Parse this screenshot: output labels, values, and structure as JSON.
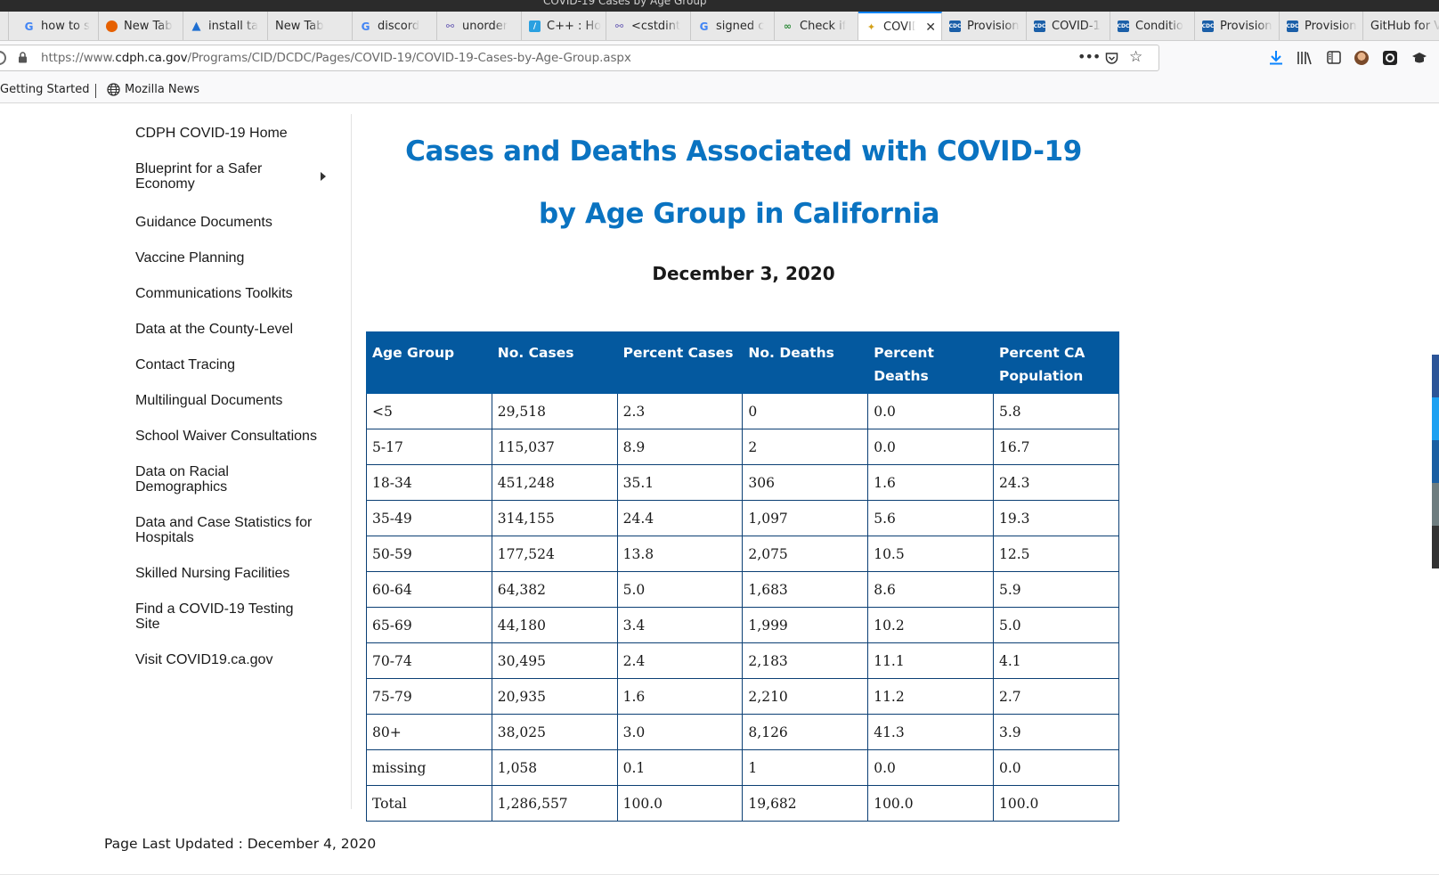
{
  "window": {
    "title": "COVID-19 Cases by Age Group"
  },
  "tabs": [
    {
      "label": "how to s",
      "icon": "google-icon"
    },
    {
      "label": "New Tab",
      "icon": "firefox-icon"
    },
    {
      "label": "install ta",
      "icon": "blue-a-icon"
    },
    {
      "label": "New Tab",
      "icon": ""
    },
    {
      "label": "discord",
      "icon": "google-icon"
    },
    {
      "label": "unorder",
      "icon": "cppreference-icon"
    },
    {
      "label": "C++ : Ho",
      "icon": "code-icon"
    },
    {
      "label": "<cstdint",
      "icon": "cppreference-icon"
    },
    {
      "label": "signed c",
      "icon": "google-icon"
    },
    {
      "label": "Check if",
      "icon": "leaf-icon"
    },
    {
      "label": "COVID",
      "icon": "cdph-icon",
      "active": true
    },
    {
      "label": "Provision",
      "icon": "cdc-icon"
    },
    {
      "label": "COVID-1",
      "icon": "cdc-icon"
    },
    {
      "label": "Conditio",
      "icon": "cdc-icon"
    },
    {
      "label": "Provision",
      "icon": "cdc-icon"
    },
    {
      "label": "Provision",
      "icon": "cdc-icon"
    },
    {
      "label": "GitHub for V",
      "icon": ""
    }
  ],
  "address": {
    "url_prefix": "https://www.",
    "url_domain": "cdph.ca.gov",
    "url_path": "/Programs/CID/DCDC/Pages/COVID-19/COVID-19-Cases-by-Age-Group.aspx"
  },
  "bookmarks": [
    {
      "label": "Getting Started"
    },
    {
      "label": "Mozilla News"
    }
  ],
  "sidebar": {
    "items": [
      {
        "label": "CDPH COVID-19 Home"
      },
      {
        "label": "Blueprint for a Safer Economy"
      },
      {
        "label": "Guidance Documents"
      },
      {
        "label": "Vaccine Planning"
      },
      {
        "label": "Communications Toolkits"
      },
      {
        "label": "Data at the County-Level"
      },
      {
        "label": "Contact Tracing"
      },
      {
        "label": "Multilingual Documents"
      },
      {
        "label": "School Waiver Consultations"
      },
      {
        "label": "Data on Racial Demographics"
      },
      {
        "label": "Data and Case Statistics for Hospitals"
      },
      {
        "label": "Skilled Nursing Facilities"
      },
      {
        "label": "Find a COVID-19 Testing Site"
      },
      {
        "label": "Visit COVID19.ca.gov"
      }
    ]
  },
  "main": {
    "title_line1": "Cases and Deaths Associated with COVID-19",
    "title_line2": "by Age Group in California",
    "date": "December 3, 2020",
    "table": {
      "headers": [
        "Age Group",
        "No. Cases",
        "Percent Cases",
        "No. Deaths",
        "Percent Deaths",
        "Percent CA Population"
      ],
      "rows": [
        [
          "<5",
          "29,518",
          "2.3",
          "0",
          "0.0",
          "5.8"
        ],
        [
          "5-17",
          "115,037",
          "8.9",
          "2",
          "0.0",
          "16.7"
        ],
        [
          "18-34",
          "451,248",
          "35.1",
          "306",
          "1.6",
          "24.3"
        ],
        [
          "35-49",
          "314,155",
          "24.4",
          "1,097",
          "5.6",
          "19.3"
        ],
        [
          "50-59",
          "177,524",
          "13.8",
          "2,075",
          "10.5",
          "12.5"
        ],
        [
          "60-64",
          "64,382",
          "5.0",
          "1,683",
          "8.6",
          "5.9"
        ],
        [
          "65-69",
          "44,180",
          "3.4",
          "1,999",
          "10.2",
          "5.0"
        ],
        [
          "70-74",
          "30,495",
          "2.4",
          "2,183",
          "11.1",
          "4.1"
        ],
        [
          "75-79",
          "20,935",
          "1.6",
          "2,210",
          "11.2",
          "2.7"
        ],
        [
          "80+",
          "38,025",
          "3.0",
          "8,126",
          "41.3",
          "3.9"
        ],
        [
          "missing",
          "1,058",
          "0.1",
          "1",
          "0.0",
          "0.0"
        ],
        [
          "Total",
          "1,286,557",
          "100.0",
          "19,682",
          "100.0",
          "100.0"
        ]
      ]
    },
    "last_updated": "Page Last Updated : December 4, 2020"
  },
  "colors": {
    "title": "#0a73c1",
    "table_header": "#04599f",
    "tab_accent": "#0a84ff"
  }
}
